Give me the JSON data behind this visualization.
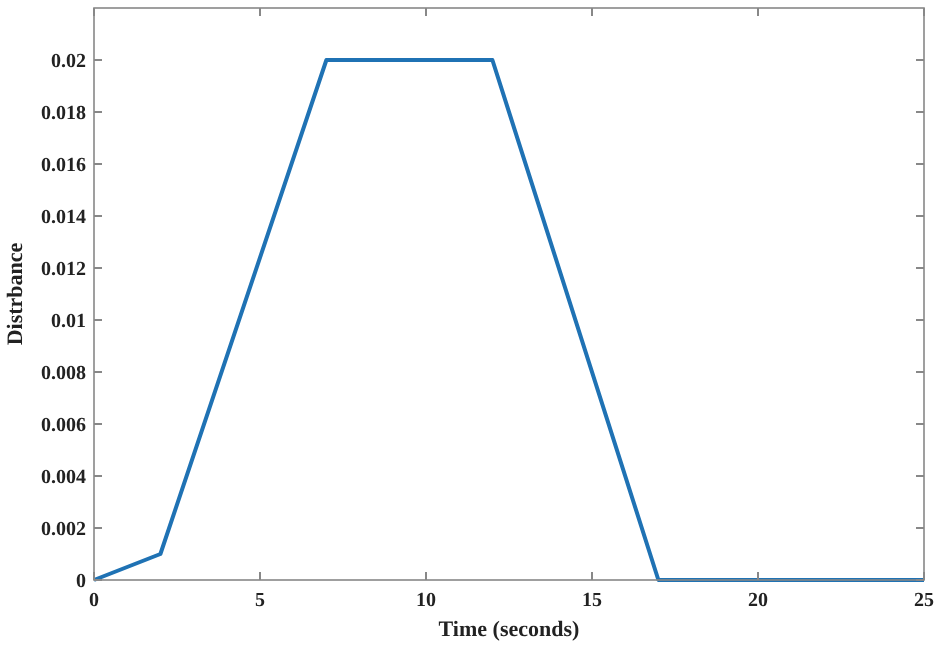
{
  "chart_data": {
    "type": "line",
    "xlabel": "Time (seconds)",
    "ylabel": "Distrbance",
    "x": [
      0,
      2,
      7,
      12,
      17,
      25
    ],
    "series": [
      {
        "color": "#1f72b4",
        "values": [
          0,
          0.001,
          0.02,
          0.02,
          0,
          0
        ]
      }
    ],
    "xlim": [
      0,
      25
    ],
    "xticks": [
      0,
      5,
      10,
      15,
      20,
      25
    ],
    "ylim": [
      0,
      0.022
    ],
    "yticks": [
      0,
      0.002,
      0.004,
      0.006,
      0.008,
      0.01,
      0.012,
      0.014,
      0.016,
      0.018,
      0.02
    ],
    "grid": false,
    "marker": "none",
    "line_style": "solid"
  }
}
